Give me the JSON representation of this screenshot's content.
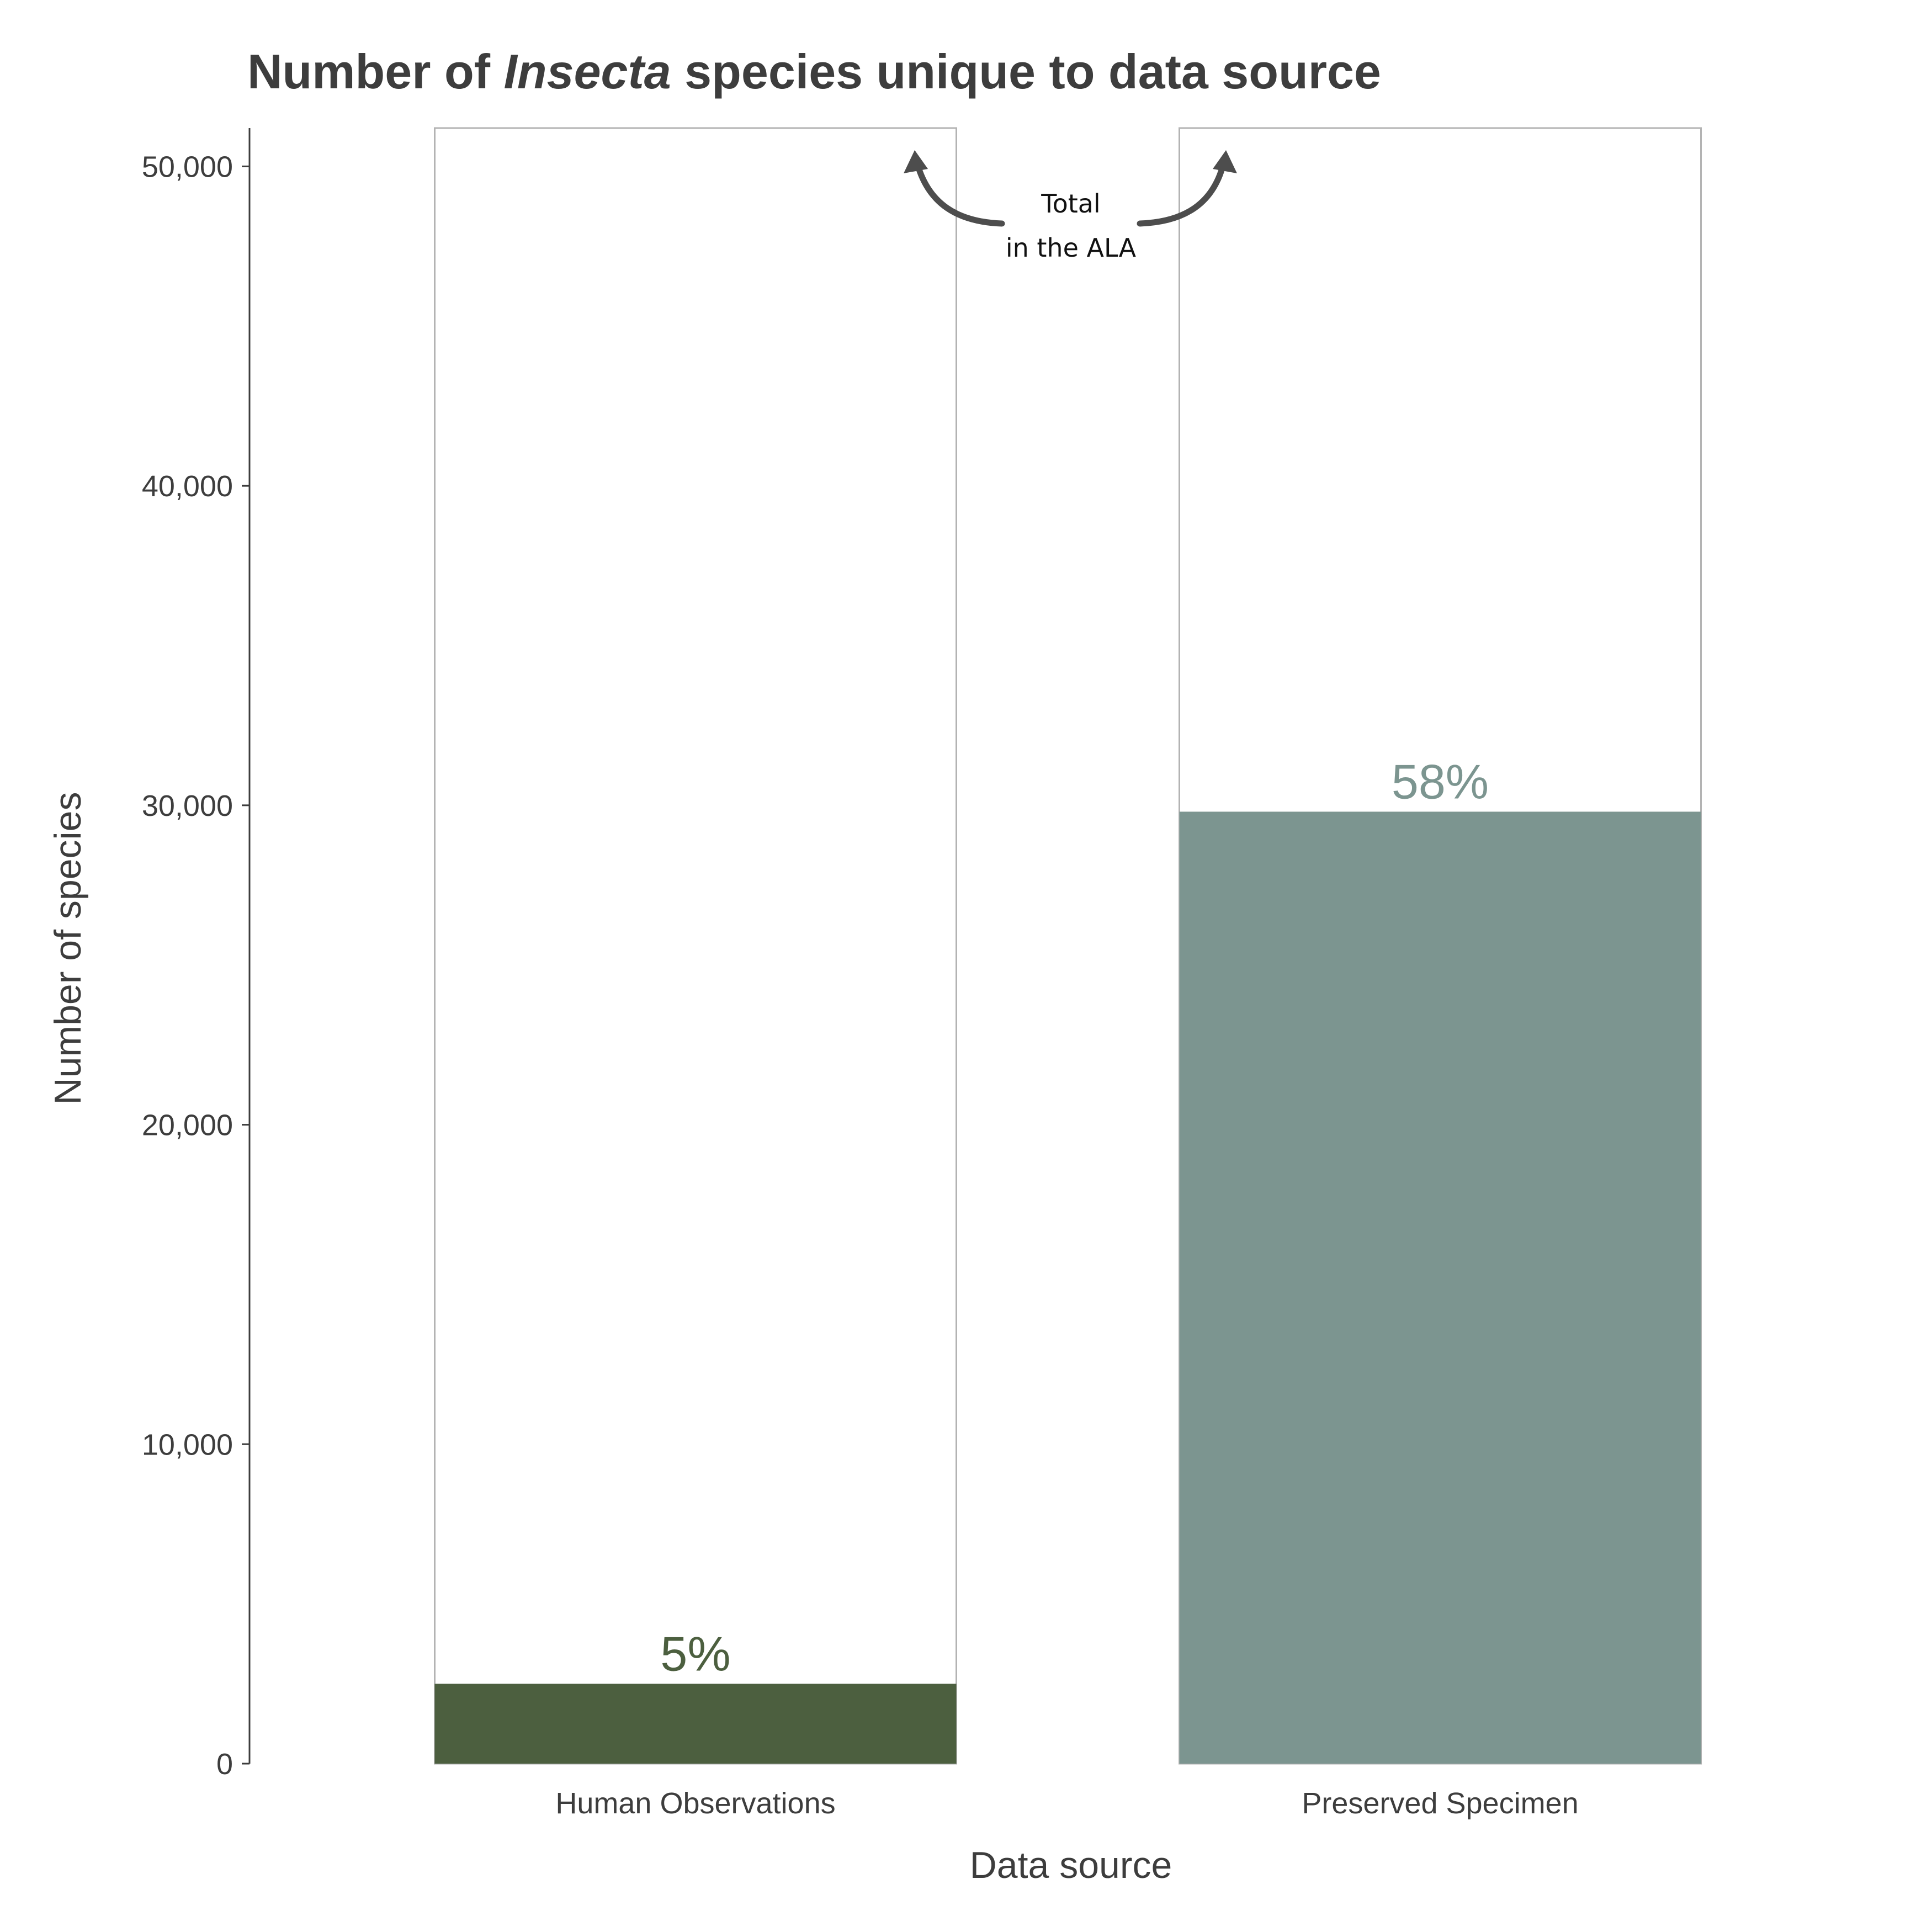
{
  "chart_data": {
    "type": "bar",
    "title_parts": {
      "before": "Number of ",
      "italic": "Insecta",
      "after": " species unique to data source"
    },
    "xlabel": "Data source",
    "ylabel": "Number of species",
    "ylim": [
      0,
      51200
    ],
    "yticks": [
      0,
      10000,
      20000,
      30000,
      40000,
      50000
    ],
    "ytick_labels": [
      "0",
      "10,000",
      "20,000",
      "30,000",
      "40,000",
      "50,000"
    ],
    "categories": [
      "Human Observations",
      "Preserved Specimen"
    ],
    "series": [
      {
        "values": [
          51200,
          51200
        ],
        "fill": "#ffffff",
        "stroke": "#b3b3b3"
      },
      {
        "values": [
          2500,
          29800
        ],
        "colors": [
          "#4c5f3f",
          "#7c9590"
        ],
        "labels": [
          "5%",
          "58%"
        ]
      }
    ],
    "annotation": {
      "line1": "Total",
      "line2": "in the ALA",
      "arrow_color": "#4d4d4d"
    },
    "grid": false
  }
}
